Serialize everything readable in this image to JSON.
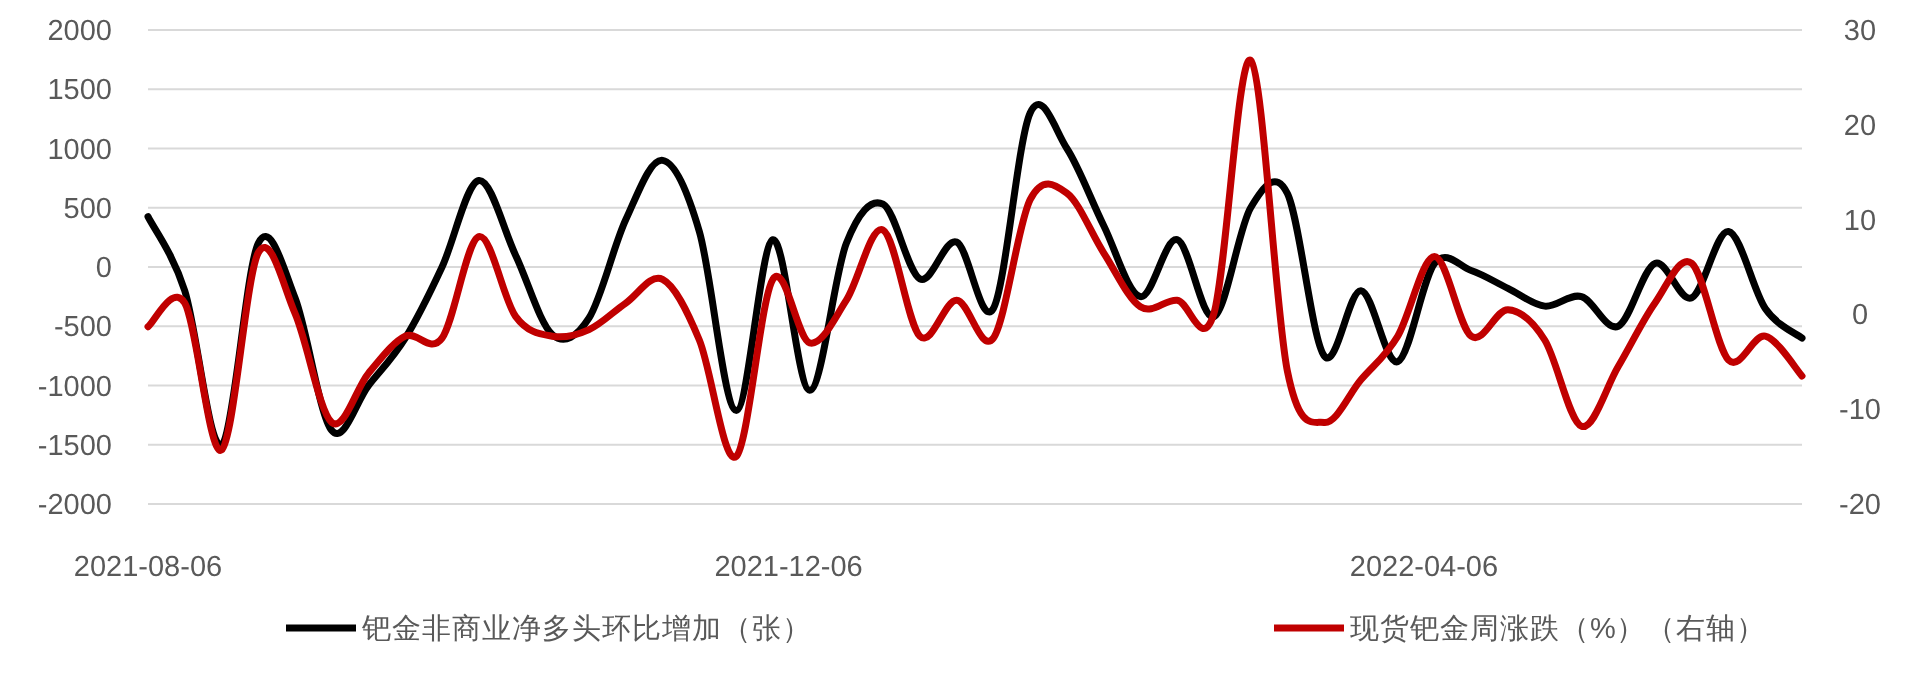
{
  "chart_data": {
    "type": "line",
    "x": [
      "2021-08-06",
      "2021-08-13",
      "2021-08-20",
      "2021-08-27",
      "2021-09-03",
      "2021-09-10",
      "2021-09-17",
      "2021-09-24",
      "2021-10-01",
      "2021-10-08",
      "2021-10-15",
      "2021-10-22",
      "2021-10-29",
      "2021-11-05",
      "2021-11-12",
      "2021-11-19",
      "2021-11-26",
      "2021-12-03",
      "2021-12-10",
      "2021-12-17",
      "2021-12-24",
      "2021-12-31",
      "2022-01-07",
      "2022-01-14",
      "2022-01-21",
      "2022-01-28",
      "2022-02-04",
      "2022-02-11",
      "2022-02-18",
      "2022-02-25",
      "2022-03-04",
      "2022-03-11",
      "2022-03-18",
      "2022-03-25",
      "2022-04-01",
      "2022-04-08",
      "2022-04-15",
      "2022-04-22",
      "2022-04-29",
      "2022-05-06",
      "2022-05-13",
      "2022-05-20",
      "2022-05-27",
      "2022-06-03",
      "2022-06-10",
      "2022-06-17"
    ],
    "series": [
      {
        "name": "钯金非商业净多头环比增加（张）",
        "color": "#000000",
        "values": [
          425,
          -200,
          -1500,
          200,
          -260,
          -1380,
          -1000,
          -600,
          0,
          730,
          100,
          -570,
          -430,
          400,
          900,
          300,
          -1210,
          230,
          -1040,
          200,
          530,
          -100,
          210,
          -350,
          1300,
          1000,
          350,
          -250,
          230,
          -420,
          500,
          620,
          -750,
          -200,
          -800,
          30,
          -30,
          -180,
          -330,
          -250,
          -500,
          30,
          -260,
          300,
          -350,
          -600
        ]
      },
      {
        "name": "现货钯金周涨跌（%）（右轴）",
        "color": "#c00000",
        "axis": "y2",
        "values": [
          -1.3,
          1.2,
          -14.3,
          6.5,
          0.1,
          -11.4,
          -6.2,
          -2.3,
          -2.5,
          8.2,
          -0.2,
          -2.3,
          -1.6,
          1.2,
          3.7,
          -2.7,
          -15.0,
          3.7,
          -3.0,
          1.5,
          8.9,
          -2.3,
          1.5,
          -2.5,
          12.1,
          12.8,
          6.5,
          0.8,
          1.5,
          0.1,
          26.8,
          -6.0,
          -11.4,
          -6.9,
          -2.3,
          6.1,
          -2.3,
          0.5,
          -2.7,
          -11.8,
          -5.5,
          1.2,
          5.4,
          -4.8,
          -2.3,
          -6.5
        ]
      }
    ],
    "xlim": [
      "2021-08-06",
      "2022-06-17"
    ],
    "xticks": [
      "2021-08-06",
      "2021-12-06",
      "2022-04-06"
    ],
    "ylim": [
      -2000,
      2000
    ],
    "yticks": [
      -2000,
      -1500,
      -1000,
      -500,
      0,
      500,
      1000,
      1500,
      2000
    ],
    "y2lim": [
      -20,
      30
    ],
    "y2ticks": [
      -20,
      -10,
      0,
      10,
      20,
      30
    ],
    "grid": "y",
    "legend": "bottom",
    "marker": "none",
    "line_style": "solid"
  }
}
